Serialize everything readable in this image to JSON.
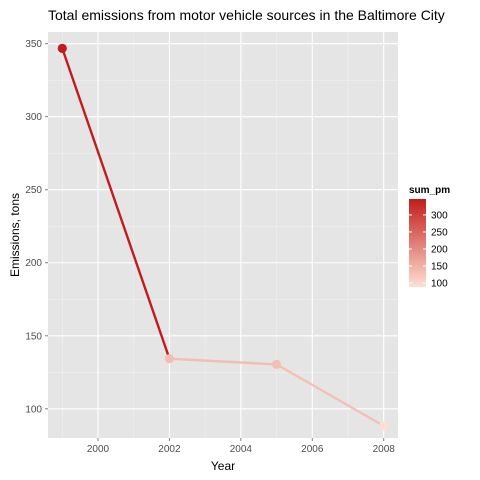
{
  "chart_data": {
    "type": "line",
    "title": "Total emissions from motor vehicle sources in the Baltimore City",
    "xlabel": "Year",
    "ylabel": "Emissions, tons",
    "x": [
      1999,
      2002,
      2005,
      2008
    ],
    "y": [
      346.8,
      134.3,
      130.4,
      88.3
    ],
    "xlim": [
      1998.6,
      2008.4
    ],
    "ylim": [
      80,
      358
    ],
    "x_ticks": [
      2000,
      2002,
      2004,
      2006,
      2008
    ],
    "x_tick_labels": [
      "2000",
      "2002",
      "2004",
      "2006",
      "2008"
    ],
    "y_ticks": [
      100,
      150,
      200,
      250,
      300,
      350
    ],
    "y_tick_labels": [
      "100",
      "150",
      "200",
      "250",
      "300",
      "350"
    ],
    "grid": true,
    "background": "#e5e5e5",
    "color_scale": {
      "title": "sum_pm",
      "low_value": 88.3,
      "high_value": 346.8,
      "low_color": "#fee0d2",
      "high_color": "#c21c1c",
      "breaks": [
        100,
        150,
        200,
        250,
        300
      ],
      "break_labels": [
        "100",
        "150",
        "200",
        "250",
        "300"
      ]
    },
    "legend_placement": "right"
  }
}
